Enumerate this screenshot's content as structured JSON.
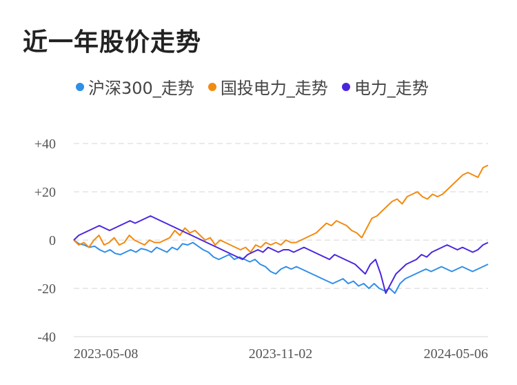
{
  "title": "近一年股价走势",
  "chart_data": {
    "type": "line",
    "yticks": [
      "+40",
      "+20",
      "0",
      "-20",
      "-40"
    ],
    "ytick_values": [
      40,
      20,
      0,
      -20,
      -40
    ],
    "ylim": [
      -40,
      40
    ],
    "xticks": [
      "2023-05-08",
      "2023-11-02",
      "2024-05-06"
    ],
    "grid": true,
    "legend_position": "top",
    "series": [
      {
        "name": "沪深300_走势",
        "color": "#2f8ee8",
        "values": [
          0,
          -1.5,
          -2,
          -3,
          -2.5,
          -4,
          -5,
          -4,
          -5.5,
          -6,
          -5,
          -4,
          -5,
          -3.5,
          -4,
          -5,
          -3,
          -4,
          -5,
          -3,
          -4,
          -1.5,
          -2,
          -1,
          -2.5,
          -4,
          -5,
          -7,
          -8,
          -7,
          -6,
          -8,
          -7,
          -8,
          -9,
          -8,
          -10,
          -11,
          -13,
          -14,
          -12,
          -11,
          -12,
          -11,
          -12,
          -13,
          -14,
          -15,
          -16,
          -17,
          -18,
          -17,
          -16,
          -18,
          -17,
          -19,
          -18,
          -20,
          -18,
          -20,
          -21,
          -20,
          -22,
          -18,
          -16,
          -15,
          -14,
          -13,
          -12,
          -13,
          -12,
          -11,
          -12,
          -13,
          -12,
          -11,
          -12,
          -13,
          -12,
          -11,
          -10
        ]
      },
      {
        "name": "国投电力_走势",
        "color": "#f28a0f",
        "values": [
          0,
          -2,
          -1,
          -3,
          0,
          2,
          -2,
          -1,
          1,
          -2,
          -1,
          2,
          0,
          -1,
          -2,
          0,
          -1,
          -1,
          0,
          1,
          4,
          2,
          5,
          3,
          4,
          2,
          0,
          1,
          -2,
          0,
          -1,
          -2,
          -3,
          -4,
          -3,
          -5,
          -2,
          -3,
          -1,
          -2,
          -1,
          -2,
          0,
          -1,
          -1,
          0,
          1,
          2,
          3,
          5,
          7,
          6,
          8,
          7,
          6,
          4,
          3,
          1,
          5,
          9,
          10,
          12,
          14,
          16,
          17,
          15,
          18,
          19,
          20,
          18,
          17,
          19,
          18,
          19,
          21,
          23,
          25,
          27,
          28,
          27,
          26,
          30,
          31
        ]
      },
      {
        "name": "电力_走势",
        "color": "#4a25e0",
        "values": [
          0,
          2,
          3,
          4,
          5,
          6,
          5,
          4,
          5,
          6,
          7,
          8,
          7,
          8,
          9,
          10,
          9,
          8,
          7,
          6,
          5,
          4,
          3,
          2,
          1,
          0,
          -1,
          -2,
          -3,
          -4,
          -5,
          -6,
          -7,
          -8,
          -6,
          -5,
          -4,
          -5,
          -3,
          -4,
          -5,
          -4,
          -4,
          -5,
          -4,
          -3,
          -4,
          -5,
          -6,
          -7,
          -8,
          -6,
          -7,
          -8,
          -9,
          -10,
          -12,
          -14,
          -10,
          -8,
          -14,
          -22,
          -18,
          -14,
          -12,
          -10,
          -9,
          -8,
          -6,
          -7,
          -5,
          -4,
          -3,
          -2,
          -3,
          -4,
          -3,
          -4,
          -5,
          -4,
          -2,
          -1
        ]
      }
    ]
  }
}
